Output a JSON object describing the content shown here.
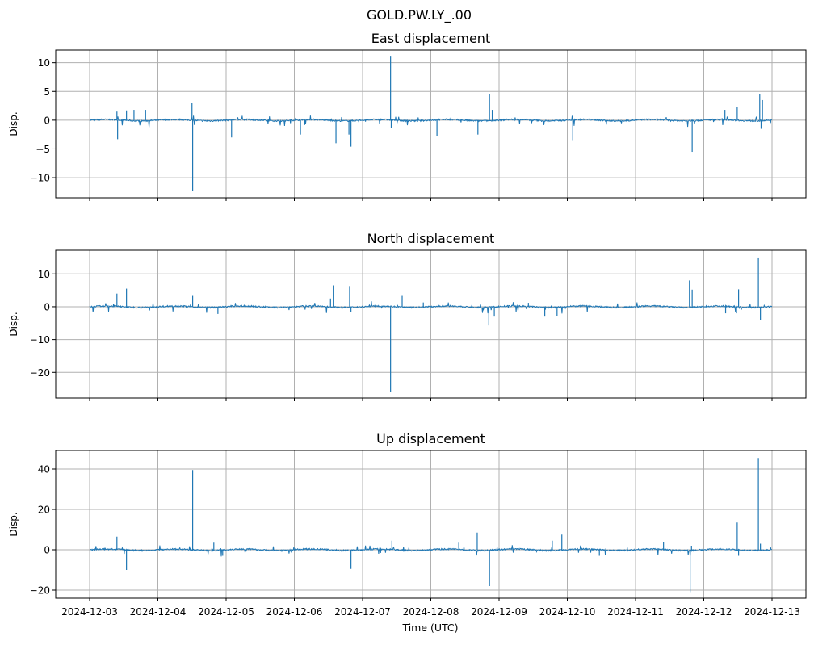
{
  "chart_data": {
    "type": "line",
    "title": "GOLD.PW.LY_.00",
    "xlabel": "Time (UTC)",
    "x_ticks": [
      "2024-12-03",
      "2024-12-04",
      "2024-12-05",
      "2024-12-06",
      "2024-12-07",
      "2024-12-08",
      "2024-12-09",
      "2024-12-10",
      "2024-12-11",
      "2024-12-12",
      "2024-12-13"
    ],
    "x_unit": "days since 2024-12-03",
    "xlim": [
      -0.5,
      10.5
    ],
    "grid": true,
    "line_color": "#1f77b4",
    "panels": [
      {
        "title": "East displacement",
        "ylabel": "Disp.",
        "ylim": [
          -13.5,
          12.2
        ],
        "y_ticks": [
          -10,
          -5,
          0,
          5,
          10
        ],
        "spikes": [
          [
            0.41,
            -3.3
          ],
          [
            0.4,
            1.5
          ],
          [
            0.54,
            1.7
          ],
          [
            0.65,
            1.8
          ],
          [
            0.82,
            1.8
          ],
          [
            1.5,
            3.0
          ],
          [
            1.51,
            -12.3
          ],
          [
            2.08,
            -3.0
          ],
          [
            3.09,
            -2.5
          ],
          [
            3.61,
            -4.0
          ],
          [
            3.83,
            -4.6
          ],
          [
            3.8,
            -2.5
          ],
          [
            4.41,
            11.2
          ],
          [
            4.42,
            -1.4
          ],
          [
            5.09,
            -2.7
          ],
          [
            5.69,
            -2.5
          ],
          [
            5.86,
            4.5
          ],
          [
            5.9,
            1.8
          ],
          [
            7.08,
            -3.6
          ],
          [
            8.83,
            -5.5
          ],
          [
            9.31,
            1.8
          ],
          [
            9.49,
            2.3
          ],
          [
            9.82,
            4.5
          ],
          [
            9.84,
            -1.5
          ],
          [
            9.86,
            3.5
          ]
        ]
      },
      {
        "title": "North displacement",
        "ylabel": "Disp.",
        "ylim": [
          -27.8,
          17.2
        ],
        "y_ticks": [
          -20,
          -10,
          0,
          10
        ],
        "spikes": [
          [
            0.4,
            4.0
          ],
          [
            0.54,
            5.5
          ],
          [
            1.51,
            3.3
          ],
          [
            1.88,
            -2.2
          ],
          [
            3.53,
            2.5
          ],
          [
            3.57,
            6.5
          ],
          [
            3.81,
            6.3
          ],
          [
            3.83,
            -1.5
          ],
          [
            4.41,
            -26.0
          ],
          [
            4.58,
            3.3
          ],
          [
            4.89,
            1.3
          ],
          [
            5.85,
            -5.7
          ],
          [
            5.93,
            -3.0
          ],
          [
            6.43,
            1.2
          ],
          [
            6.67,
            -3.0
          ],
          [
            6.85,
            -2.8
          ],
          [
            8.79,
            8.0
          ],
          [
            8.83,
            5.2
          ],
          [
            9.32,
            -2.0
          ],
          [
            9.48,
            -2.0
          ],
          [
            9.51,
            5.3
          ],
          [
            9.8,
            15.0
          ],
          [
            9.83,
            -4.0
          ]
        ]
      },
      {
        "title": "Up displacement",
        "ylabel": "Disp.",
        "ylim": [
          -24,
          49.2
        ],
        "y_ticks": [
          -20,
          0,
          20,
          40
        ],
        "spikes": [
          [
            0.4,
            6.5
          ],
          [
            0.54,
            -10.0
          ],
          [
            1.51,
            39.5
          ],
          [
            1.82,
            3.5
          ],
          [
            1.95,
            -3.0
          ],
          [
            3.83,
            -9.5
          ],
          [
            4.43,
            4.5
          ],
          [
            5.41,
            3.5
          ],
          [
            5.68,
            8.5
          ],
          [
            5.86,
            -18.0
          ],
          [
            6.78,
            4.5
          ],
          [
            6.92,
            7.5
          ],
          [
            7.47,
            -3.0
          ],
          [
            8.41,
            4.0
          ],
          [
            8.8,
            -21.0
          ],
          [
            8.82,
            2.0
          ],
          [
            9.49,
            13.5
          ],
          [
            9.51,
            -3.0
          ],
          [
            9.8,
            45.5
          ],
          [
            9.83,
            3.0
          ]
        ]
      }
    ]
  }
}
